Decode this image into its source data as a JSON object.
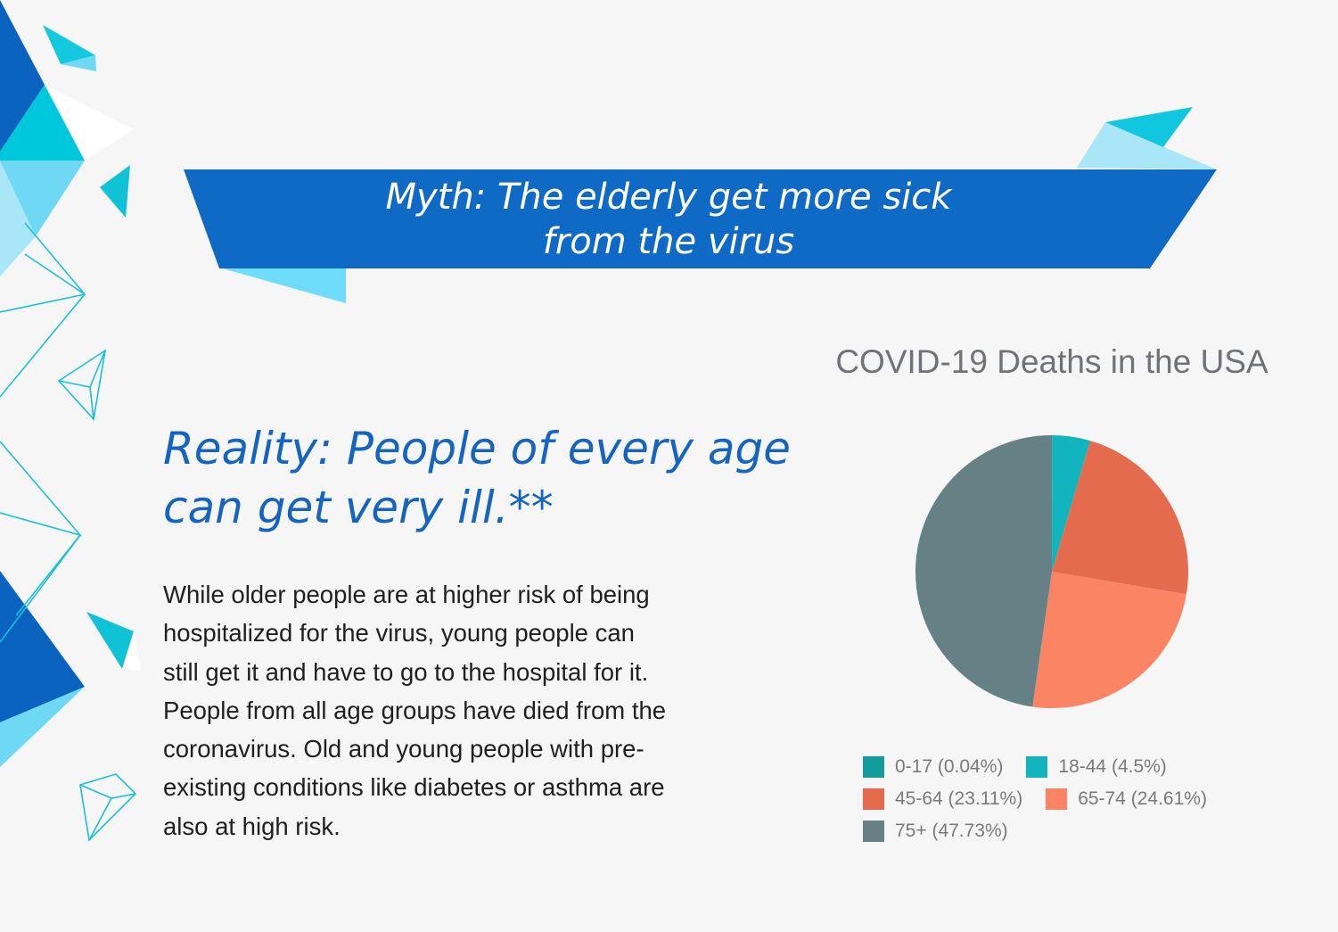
{
  "banner": {
    "line1": "Myth: The elderly get more sick",
    "line2": "from the virus",
    "color": "#0e6ac4"
  },
  "reality": {
    "line1": "Reality: People of every age",
    "line2": "can get very ill.**"
  },
  "body_lines": [
    "While older people are at higher risk of being",
    "hospitalized for the virus, young people can",
    "still get it and have to go to the hospital for it.",
    "People from all age groups have died from the",
    "coronavirus. Old and young people with pre-",
    "existing conditions like diabetes or asthma are",
    "also at high risk."
  ],
  "chart_data": {
    "type": "pie",
    "title": "COVID-19 Deaths in the USA",
    "legend_position": "bottom",
    "slices": [
      {
        "label": "0-17 (0.04%)",
        "value": 0.04,
        "color": "#139c9b"
      },
      {
        "label": "18-44 (4.5%)",
        "value": 4.5,
        "color": "#12b5bd"
      },
      {
        "label": "45-64 (23.11%)",
        "value": 23.11,
        "color": "#e56b4e"
      },
      {
        "label": "65-74 (24.61%)",
        "value": 24.61,
        "color": "#fa8464"
      },
      {
        "label": "75+ (47.73%)",
        "value": 47.73,
        "color": "#658185"
      }
    ]
  }
}
